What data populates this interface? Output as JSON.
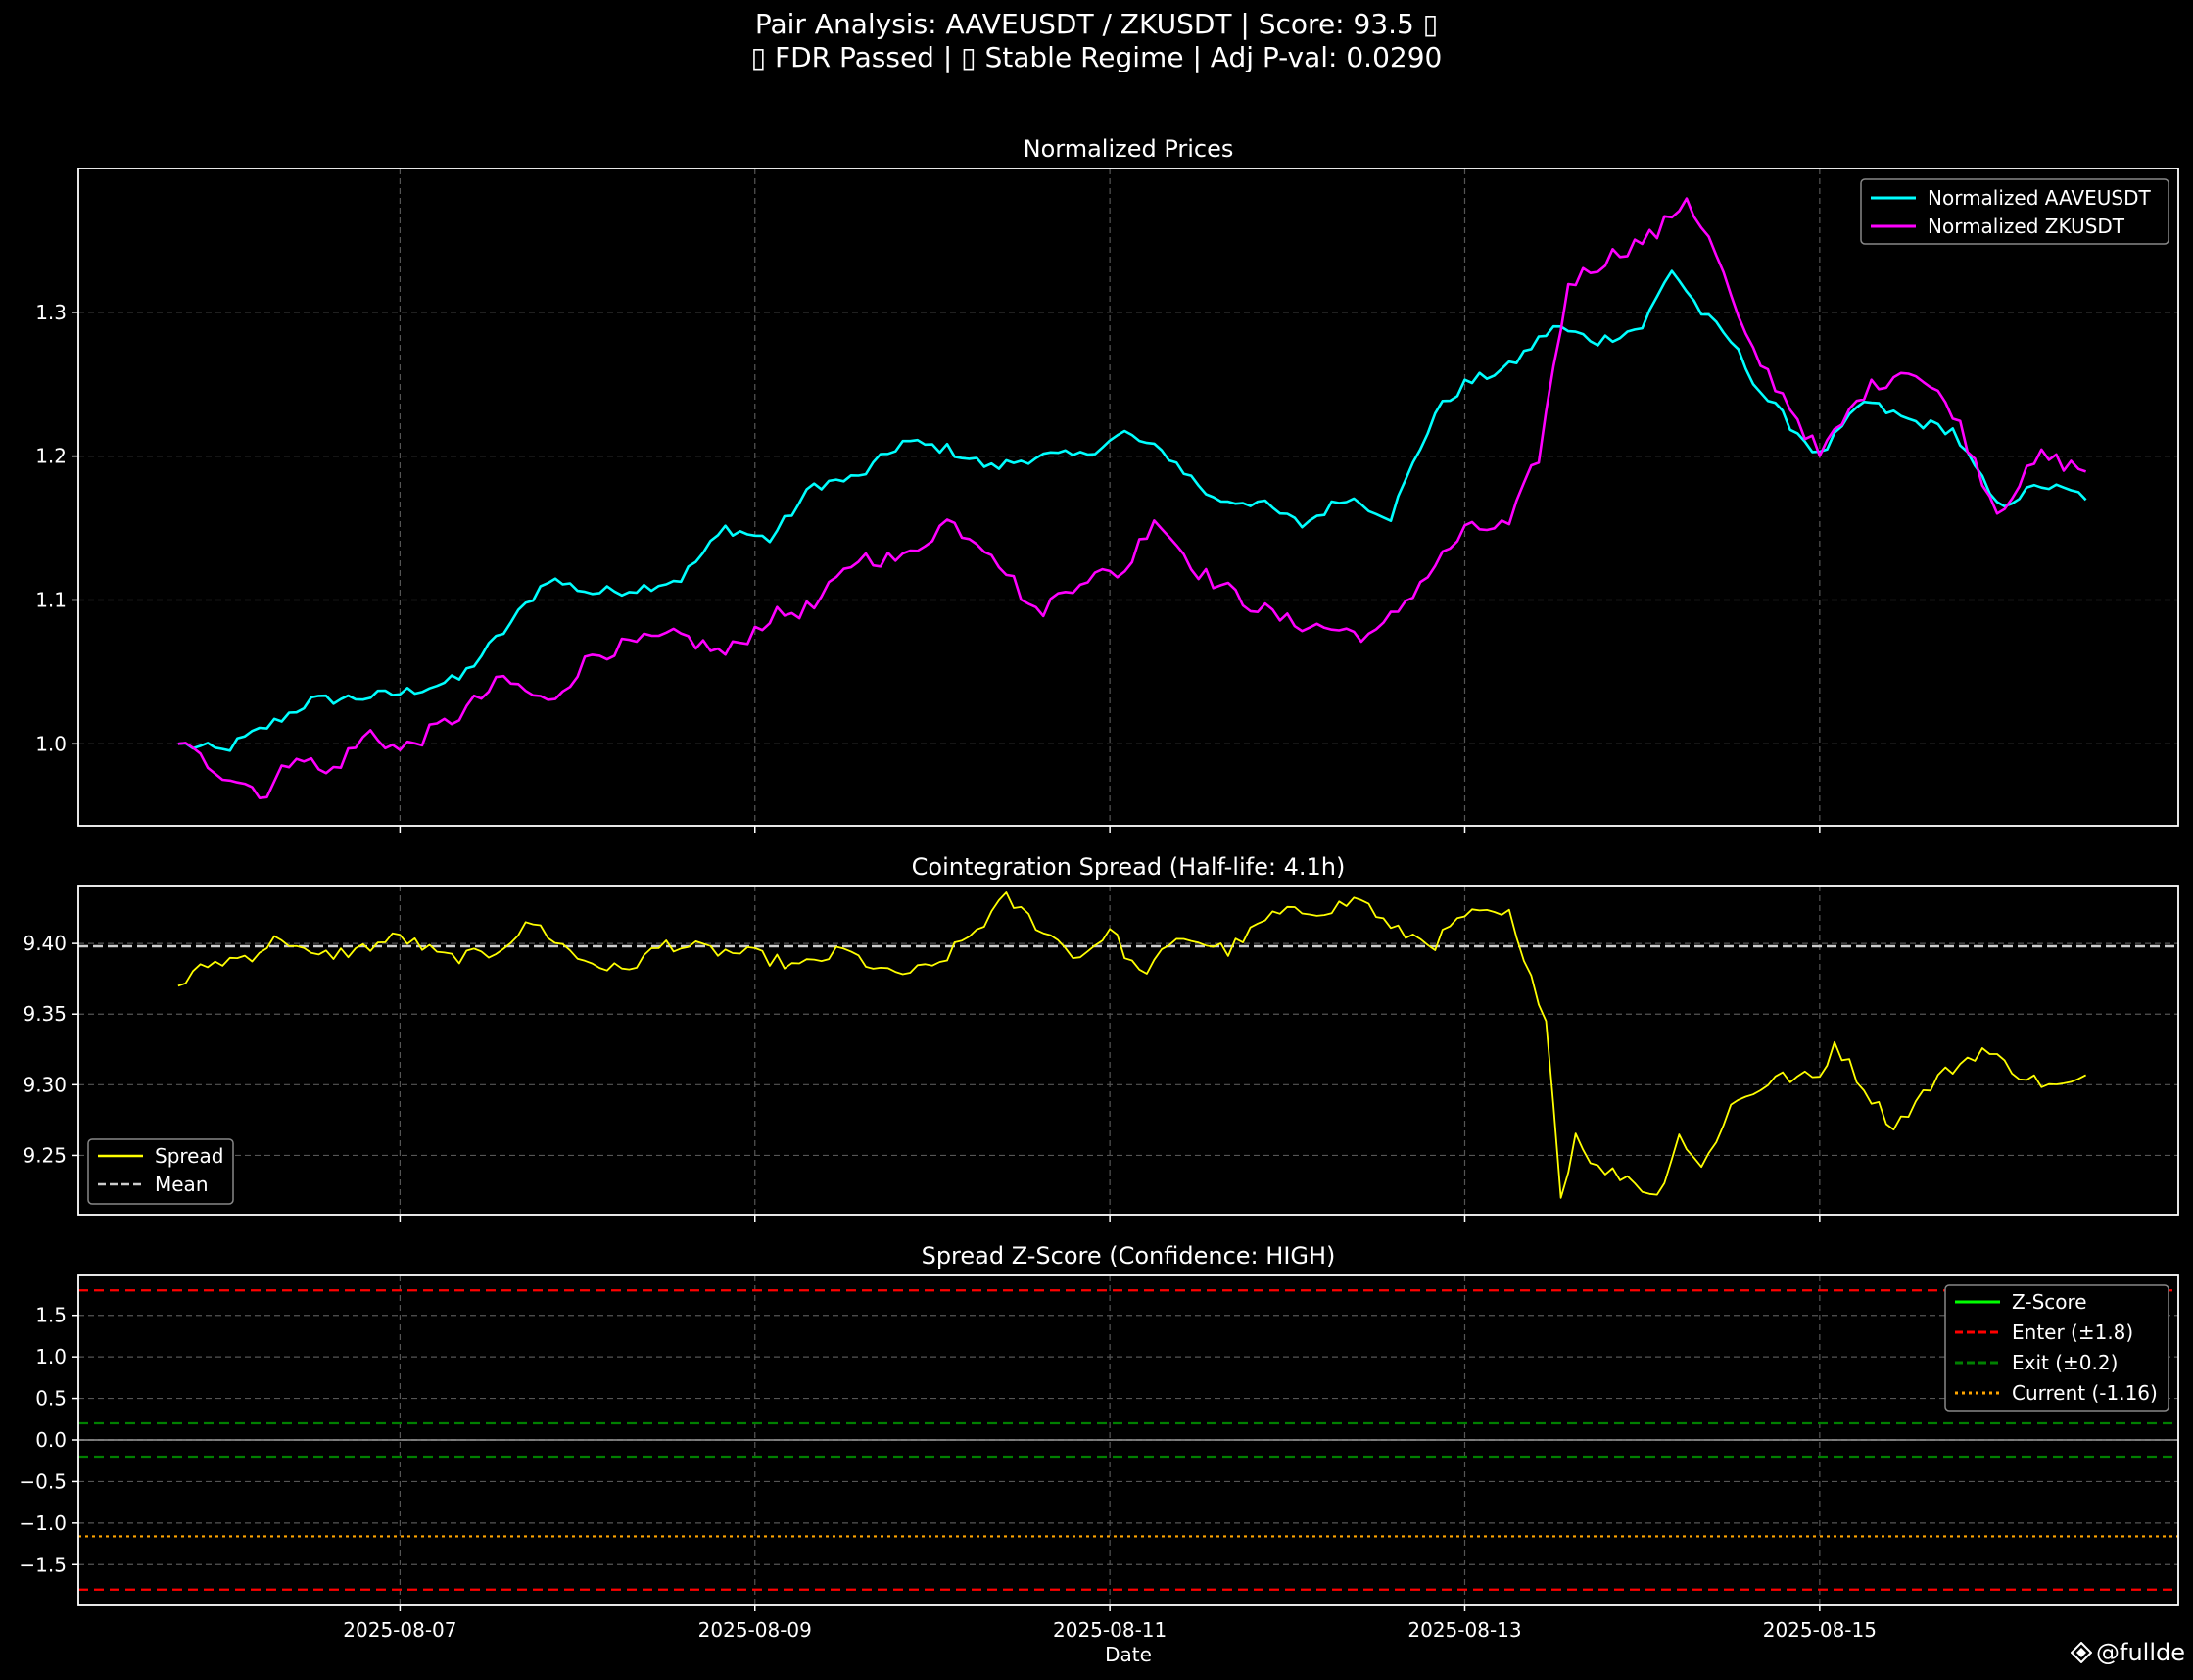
{
  "suptitle": {
    "line1": "Pair Analysis: AAVEUSDT / ZKUSDT | Score: 93.5 ▯",
    "line2": "▯ FDR Passed | ▯ Stable Regime | Adj P-val: 0.0290"
  },
  "watermark": {
    "text": "@fullde",
    "icon": "diamond-logo-icon"
  },
  "colors": {
    "background": "#000000",
    "aave": "#00ffff",
    "zk": "#ff00ff",
    "spread": "#ffff00",
    "mean": "#cccccc",
    "zscore": "#00ff00",
    "enter": "#ff0000",
    "exit": "#008000",
    "current": "#ffa500",
    "grid": "#555555",
    "axes": "#ffffff"
  },
  "chart_data": [
    {
      "type": "line",
      "title": "Normalized Prices",
      "xlabel": "",
      "ylabel": "",
      "x_start": "2025-08-05 18:00",
      "x_end": "2025-08-16 12:00",
      "step_hours": 1,
      "xlim": [
        "2025-08-05 04:30",
        "2025-08-17 00:30"
      ],
      "ylim": [
        0.943,
        1.4
      ],
      "yticks": [
        1.0,
        1.1,
        1.2,
        1.3
      ],
      "ytick_labels": [
        "1.0",
        "1.1",
        "1.2",
        "1.3"
      ],
      "grid": true,
      "legend": "top-right",
      "series": [
        {
          "name": "Normalized AAVEUSDT",
          "color": "#00ffff",
          "keypoints": [
            [
              "2025-08-05 18:00",
              1.0
            ],
            [
              "2025-08-06 00:00",
              0.995
            ],
            [
              "2025-08-06 06:00",
              1.012
            ],
            [
              "2025-08-06 12:00",
              1.03
            ],
            [
              "2025-08-06 18:00",
              1.032
            ],
            [
              "2025-08-07 00:00",
              1.035
            ],
            [
              "2025-08-07 08:00",
              1.045
            ],
            [
              "2025-08-07 14:00",
              1.078
            ],
            [
              "2025-08-07 20:00",
              1.115
            ],
            [
              "2025-08-08 02:00",
              1.105
            ],
            [
              "2025-08-08 08:00",
              1.108
            ],
            [
              "2025-08-08 14:00",
              1.115
            ],
            [
              "2025-08-08 20:00",
              1.15
            ],
            [
              "2025-08-09 02:00",
              1.142
            ],
            [
              "2025-08-09 08:00",
              1.18
            ],
            [
              "2025-08-09 14:00",
              1.185
            ],
            [
              "2025-08-09 20:00",
              1.21
            ],
            [
              "2025-08-10 02:00",
              1.205
            ],
            [
              "2025-08-10 08:00",
              1.192
            ],
            [
              "2025-08-10 14:00",
              1.2
            ],
            [
              "2025-08-10 20:00",
              1.2
            ],
            [
              "2025-08-11 02:00",
              1.216
            ],
            [
              "2025-08-11 08:00",
              1.2
            ],
            [
              "2025-08-11 14:00",
              1.17
            ],
            [
              "2025-08-11 20:00",
              1.168
            ],
            [
              "2025-08-12 02:00",
              1.152
            ],
            [
              "2025-08-12 08:00",
              1.172
            ],
            [
              "2025-08-12 14:00",
              1.158
            ],
            [
              "2025-08-12 20:00",
              1.23
            ],
            [
              "2025-08-13 00:00",
              1.25
            ],
            [
              "2025-08-13 06:00",
              1.262
            ],
            [
              "2025-08-13 12:00",
              1.29
            ],
            [
              "2025-08-13 18:00",
              1.28
            ],
            [
              "2025-08-14 00:00",
              1.29
            ],
            [
              "2025-08-14 04:00",
              1.33
            ],
            [
              "2025-08-14 08:00",
              1.3
            ],
            [
              "2025-08-14 12:00",
              1.28
            ],
            [
              "2025-08-14 16:00",
              1.245
            ],
            [
              "2025-08-14 20:00",
              1.222
            ],
            [
              "2025-08-15 00:00",
              1.2
            ],
            [
              "2025-08-15 06:00",
              1.238
            ],
            [
              "2025-08-15 12:00",
              1.225
            ],
            [
              "2025-08-15 18:00",
              1.218
            ],
            [
              "2025-08-16 00:00",
              1.165
            ],
            [
              "2025-08-16 06:00",
              1.18
            ],
            [
              "2025-08-16 12:00",
              1.172
            ]
          ]
        },
        {
          "name": "Normalized ZKUSDT",
          "color": "#ff00ff",
          "keypoints": [
            [
              "2025-08-05 18:00",
              1.0
            ],
            [
              "2025-08-06 00:00",
              0.98
            ],
            [
              "2025-08-06 06:00",
              0.965
            ],
            [
              "2025-08-06 10:00",
              0.995
            ],
            [
              "2025-08-06 14:00",
              0.978
            ],
            [
              "2025-08-06 20:00",
              1.008
            ],
            [
              "2025-08-07 00:00",
              0.995
            ],
            [
              "2025-08-07 08:00",
              1.02
            ],
            [
              "2025-08-07 14:00",
              1.045
            ],
            [
              "2025-08-07 20:00",
              1.028
            ],
            [
              "2025-08-08 02:00",
              1.062
            ],
            [
              "2025-08-08 08:00",
              1.07
            ],
            [
              "2025-08-08 14:00",
              1.075
            ],
            [
              "2025-08-08 20:00",
              1.062
            ],
            [
              "2025-08-09 02:00",
              1.088
            ],
            [
              "2025-08-09 08:00",
              1.095
            ],
            [
              "2025-08-09 14:00",
              1.13
            ],
            [
              "2025-08-09 20:00",
              1.128
            ],
            [
              "2025-08-10 02:00",
              1.155
            ],
            [
              "2025-08-10 08:00",
              1.135
            ],
            [
              "2025-08-10 14:00",
              1.09
            ],
            [
              "2025-08-10 20:00",
              1.115
            ],
            [
              "2025-08-11 02:00",
              1.12
            ],
            [
              "2025-08-11 06:00",
              1.158
            ],
            [
              "2025-08-11 12:00",
              1.12
            ],
            [
              "2025-08-11 18:00",
              1.1
            ],
            [
              "2025-08-12 00:00",
              1.085
            ],
            [
              "2025-08-12 06:00",
              1.08
            ],
            [
              "2025-08-12 12:00",
              1.075
            ],
            [
              "2025-08-12 18:00",
              1.112
            ],
            [
              "2025-08-13 00:00",
              1.148
            ],
            [
              "2025-08-13 06:00",
              1.152
            ],
            [
              "2025-08-13 10:00",
              1.2
            ],
            [
              "2025-08-13 14:00",
              1.32
            ],
            [
              "2025-08-13 20:00",
              1.34
            ],
            [
              "2025-08-14 02:00",
              1.355
            ],
            [
              "2025-08-14 06:00",
              1.38
            ],
            [
              "2025-08-14 10:00",
              1.34
            ],
            [
              "2025-08-14 14:00",
              1.28
            ],
            [
              "2025-08-14 20:00",
              1.235
            ],
            [
              "2025-08-15 00:00",
              1.2
            ],
            [
              "2025-08-15 06:00",
              1.245
            ],
            [
              "2025-08-15 12:00",
              1.262
            ],
            [
              "2025-08-15 18:00",
              1.232
            ],
            [
              "2025-08-16 00:00",
              1.162
            ],
            [
              "2025-08-16 06:00",
              1.2
            ],
            [
              "2025-08-16 12:00",
              1.19
            ]
          ]
        }
      ]
    },
    {
      "type": "line",
      "title": "Cointegration Spread (Half-life: 4.1h)",
      "xlabel": "",
      "ylabel": "",
      "x_start": "2025-08-05 18:00",
      "x_end": "2025-08-16 12:00",
      "step_hours": 1,
      "xlim": [
        "2025-08-05 04:30",
        "2025-08-17 00:30"
      ],
      "ylim": [
        9.208,
        9.441
      ],
      "yticks": [
        9.25,
        9.3,
        9.35,
        9.4
      ],
      "ytick_labels": [
        "9.25",
        "9.30",
        "9.35",
        "9.40"
      ],
      "grid": true,
      "legend": "bottom-left",
      "mean": 9.398,
      "series": [
        {
          "name": "Spread",
          "color": "#ffff00",
          "keypoints": [
            [
              "2025-08-05 18:00",
              9.37
            ],
            [
              "2025-08-05 22:00",
              9.385
            ],
            [
              "2025-08-06 04:00",
              9.392
            ],
            [
              "2025-08-06 08:00",
              9.405
            ],
            [
              "2025-08-06 12:00",
              9.39
            ],
            [
              "2025-08-06 18:00",
              9.395
            ],
            [
              "2025-08-07 00:00",
              9.405
            ],
            [
              "2025-08-07 06:00",
              9.39
            ],
            [
              "2025-08-07 12:00",
              9.392
            ],
            [
              "2025-08-07 18:00",
              9.415
            ],
            [
              "2025-08-08 00:00",
              9.39
            ],
            [
              "2025-08-08 06:00",
              9.38
            ],
            [
              "2025-08-08 12:00",
              9.4
            ],
            [
              "2025-08-08 18:00",
              9.395
            ],
            [
              "2025-08-09 00:00",
              9.392
            ],
            [
              "2025-08-09 06:00",
              9.383
            ],
            [
              "2025-08-09 12:00",
              9.395
            ],
            [
              "2025-08-09 18:00",
              9.378
            ],
            [
              "2025-08-10 00:00",
              9.382
            ],
            [
              "2025-08-10 06:00",
              9.41
            ],
            [
              "2025-08-10 10:00",
              9.432
            ],
            [
              "2025-08-10 16:00",
              9.405
            ],
            [
              "2025-08-10 20:00",
              9.39
            ],
            [
              "2025-08-11 00:00",
              9.41
            ],
            [
              "2025-08-11 04:00",
              9.378
            ],
            [
              "2025-08-11 10:00",
              9.405
            ],
            [
              "2025-08-11 16:00",
              9.395
            ],
            [
              "2025-08-11 22:00",
              9.42
            ],
            [
              "2025-08-12 06:00",
              9.425
            ],
            [
              "2025-08-12 10:00",
              9.432
            ],
            [
              "2025-08-12 14:00",
              9.41
            ],
            [
              "2025-08-12 20:00",
              9.4
            ],
            [
              "2025-08-13 00:00",
              9.42
            ],
            [
              "2025-08-13 06:00",
              9.42
            ],
            [
              "2025-08-13 08:00",
              9.385
            ],
            [
              "2025-08-13 11:00",
              9.35
            ],
            [
              "2025-08-13 13:00",
              9.22
            ],
            [
              "2025-08-13 15:00",
              9.265
            ],
            [
              "2025-08-13 18:00",
              9.24
            ],
            [
              "2025-08-13 22:00",
              9.235
            ],
            [
              "2025-08-14 02:00",
              9.22
            ],
            [
              "2025-08-14 05:00",
              9.265
            ],
            [
              "2025-08-14 08:00",
              9.24
            ],
            [
              "2025-08-14 12:00",
              9.285
            ],
            [
              "2025-08-14 18:00",
              9.305
            ],
            [
              "2025-08-15 00:00",
              9.305
            ],
            [
              "2025-08-15 02:00",
              9.33
            ],
            [
              "2025-08-15 06:00",
              9.298
            ],
            [
              "2025-08-15 10:00",
              9.27
            ],
            [
              "2025-08-15 16:00",
              9.305
            ],
            [
              "2025-08-15 22:00",
              9.325
            ],
            [
              "2025-08-16 04:00",
              9.305
            ],
            [
              "2025-08-16 08:00",
              9.298
            ],
            [
              "2025-08-16 12:00",
              9.303
            ]
          ]
        },
        {
          "name": "Mean",
          "color": "#cccccc",
          "style": "dashed",
          "value": 9.398
        }
      ]
    },
    {
      "type": "line",
      "title": "Spread Z-Score (Confidence: HIGH)",
      "xlabel": "Date",
      "ylabel": "",
      "xlim": [
        "2025-08-05 04:30",
        "2025-08-17 00:30"
      ],
      "ylim": [
        -1.98,
        1.98
      ],
      "yticks": [
        -1.5,
        -1.0,
        -0.5,
        0.0,
        0.5,
        1.0,
        1.5
      ],
      "ytick_labels": [
        "−1.5",
        "−1.0",
        "−0.5",
        "0.0",
        "0.5",
        "1.0",
        "1.5"
      ],
      "xticks": [
        "2025-08-07",
        "2025-08-09",
        "2025-08-11",
        "2025-08-13",
        "2025-08-15"
      ],
      "grid": true,
      "legend": "top-right",
      "series": [
        {
          "name": "Z-Score",
          "color": "#00ff00",
          "style": "solid",
          "values": []
        },
        {
          "name": "Enter (±1.8)",
          "color": "#ff0000",
          "style": "dashed",
          "value": 1.8,
          "mirror": true
        },
        {
          "name": "Exit (±0.2)",
          "color": "#008000",
          "style": "dashed",
          "value": 0.2,
          "mirror": true
        },
        {
          "name": "Current (-1.16)",
          "color": "#ffa500",
          "style": "dotted",
          "value": -1.16
        }
      ]
    }
  ]
}
